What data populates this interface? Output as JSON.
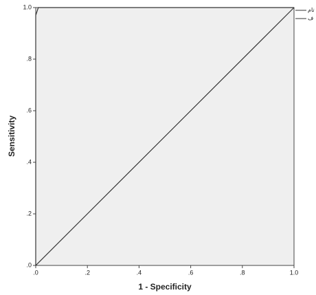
{
  "chart_data": {
    "type": "line",
    "xlabel": "1 - Specificity",
    "ylabel": "Sensitivity",
    "xlim": [
      0,
      1
    ],
    "ylim": [
      0,
      1
    ],
    "xticks": [
      {
        "value": 0,
        "label": ".0"
      },
      {
        "value": 0.2,
        "label": ".2"
      },
      {
        "value": 0.4,
        "label": ".4"
      },
      {
        "value": 0.6,
        "label": ".6"
      },
      {
        "value": 0.8,
        "label": ".8"
      },
      {
        "value": 1,
        "label": "1.0"
      }
    ],
    "yticks": [
      {
        "value": 0,
        "label": ".0"
      },
      {
        "value": 0.2,
        "label": ".2"
      },
      {
        "value": 0.4,
        "label": ".4"
      },
      {
        "value": 0.6,
        "label": ".6"
      },
      {
        "value": 0.8,
        "label": ".8"
      },
      {
        "value": 1,
        "label": "1.0"
      }
    ],
    "series": [
      {
        "name": "تام",
        "color": "#333333",
        "x": [
          0,
          0,
          0.01,
          1
        ],
        "values": [
          0,
          0.97,
          1,
          1
        ]
      },
      {
        "name": "ف",
        "color": "#333333",
        "x": [
          0,
          1
        ],
        "values": [
          0,
          1
        ]
      }
    ]
  }
}
